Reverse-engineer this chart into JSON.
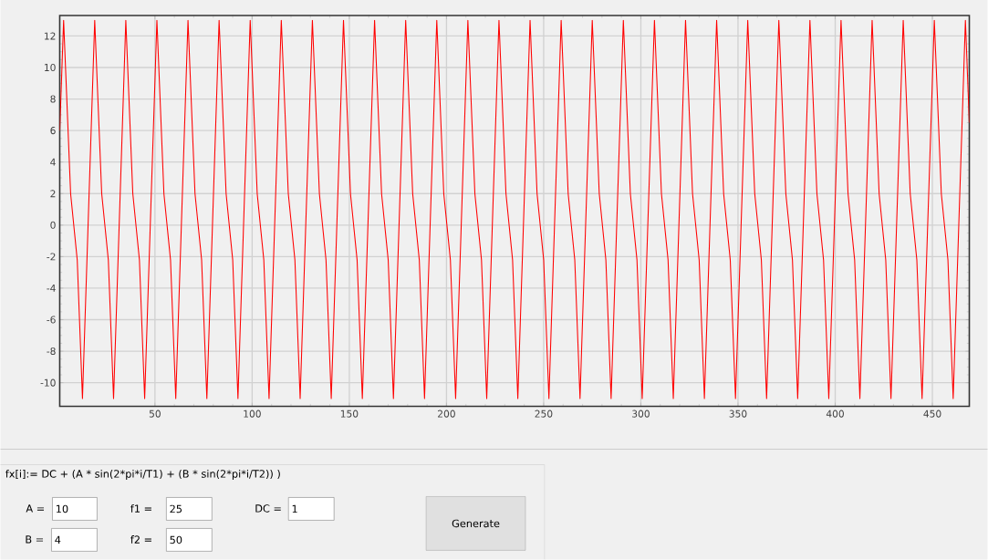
{
  "chart_data": [
    {
      "type": "line",
      "xlim": [
        1,
        469
      ],
      "ylim": [
        -11.5,
        13.3
      ],
      "xticks": [
        50,
        100,
        150,
        200,
        250,
        300,
        350,
        400,
        450
      ],
      "yticks": [
        -10,
        -8,
        -6,
        -4,
        -2,
        0,
        2,
        4,
        6,
        8,
        10,
        12
      ],
      "grid": true,
      "series": [
        {
          "color": "#ff0000",
          "x": [
            1,
            3,
            6.6,
            10,
            12.7,
            19,
            22.6,
            26,
            28.7,
            35,
            38.6,
            42,
            44.7,
            51,
            54.6,
            58,
            60.7,
            67,
            70.6,
            74,
            76.7,
            83,
            86.6,
            90,
            92.7,
            99,
            102.6,
            106,
            108.7,
            115,
            118.6,
            122,
            124.7,
            131,
            134.6,
            138,
            140.7,
            147,
            150.6,
            154,
            156.7,
            163,
            166.6,
            170,
            172.7,
            179,
            182.6,
            186,
            188.7,
            195,
            198.6,
            202,
            204.7,
            211,
            214.6,
            218,
            220.7,
            227,
            230.6,
            234,
            236.7,
            243,
            246.6,
            250,
            252.7,
            259,
            262.6,
            266,
            268.7,
            275,
            278.6,
            282,
            284.7,
            291,
            294.6,
            298,
            300.7,
            307,
            310.6,
            314,
            316.7,
            323,
            326.6,
            330,
            332.7,
            339,
            342.6,
            346,
            348.7,
            355,
            358.6,
            362,
            364.7,
            371,
            374.6,
            378,
            380.7,
            387,
            390.6,
            394,
            396.7,
            403,
            406.6,
            410,
            412.7,
            419,
            422.6,
            426,
            428.7,
            435,
            438.6,
            442,
            444.7,
            451,
            454.6,
            458,
            460.7,
            467,
            469
          ],
          "values": [
            6,
            13,
            2,
            -2.2,
            -11,
            13,
            2,
            -2.2,
            -11,
            13,
            2,
            -2.2,
            -11,
            13,
            2,
            -2.2,
            -11,
            13,
            2,
            -2.2,
            -11,
            13,
            2,
            -2.2,
            -11,
            13,
            2,
            -2.2,
            -11,
            13,
            2,
            -2.2,
            -11,
            13,
            2,
            -2.2,
            -11,
            13,
            2,
            -2.2,
            -11,
            13,
            2,
            -2.2,
            -11,
            13,
            2,
            -2.2,
            -11,
            13,
            2,
            -2.2,
            -11,
            13,
            2,
            -2.2,
            -11,
            13,
            2,
            -2.2,
            -11,
            13,
            2,
            -2.2,
            -11,
            13,
            2,
            -2.2,
            -11,
            13,
            2,
            -2.2,
            -11,
            13,
            2,
            -2.2,
            -11,
            13,
            2,
            -2.2,
            -11,
            13,
            2,
            -2.2,
            -11,
            13,
            2,
            -2.2,
            -11,
            13,
            2,
            -2.2,
            -11,
            13,
            2,
            -2.2,
            -11,
            13,
            2,
            -2.2,
            -11,
            13,
            2,
            -2.2,
            -11,
            13,
            2,
            -2.2,
            -11,
            13,
            2,
            -2.2,
            -11,
            13,
            2,
            -2.2,
            -11,
            13,
            6.5
          ]
        }
      ]
    },
    {
      "type": "other",
      "annotations": [
        "fx[i]:= DC + (A * sin(2*pi*i/T1) + (B * sin(2*pi*i/T2)) )",
        "A =",
        "10",
        "f1 =",
        "25",
        "DC =",
        "1",
        "B =",
        "4",
        "f2 =",
        "50",
        "Generate"
      ]
    }
  ]
}
